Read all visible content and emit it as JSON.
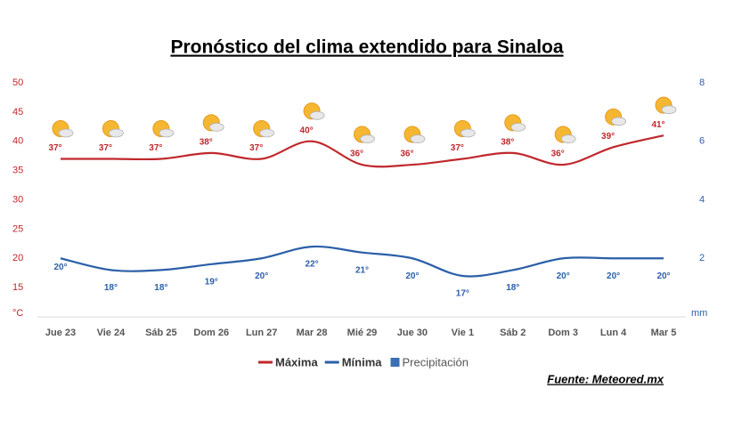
{
  "chart_data": {
    "type": "line",
    "title": "Pronóstico del clima extendido para Sinaloa",
    "source": "Fuente: Meteored.mx",
    "categories": [
      "Jue 23",
      "Vie 24",
      "Sáb 25",
      "Dom 26",
      "Lun 27",
      "Mar 28",
      "Mié 29",
      "Jue 30",
      "Vie 1",
      "Sáb 2",
      "Dom 3",
      "Lun 4",
      "Mar 5"
    ],
    "series": [
      {
        "name": "Máxima",
        "color": "#c0282d",
        "values": [
          37,
          37,
          37,
          38,
          37,
          40,
          36,
          36,
          37,
          38,
          36,
          39,
          41
        ],
        "value_labels": [
          "37°",
          "37°",
          "37°",
          "38°",
          "37°",
          "40°",
          "36°",
          "36°",
          "37°",
          "38°",
          "36°",
          "39°",
          "41°"
        ]
      },
      {
        "name": "Mínima",
        "color": "#2b5fa8",
        "values": [
          20,
          18,
          18,
          19,
          20,
          22,
          21,
          20,
          17,
          18,
          20,
          20,
          20
        ],
        "value_labels": [
          "20°",
          "18°",
          "18°",
          "19°",
          "20°",
          "22°",
          "21°",
          "20°",
          "17°",
          "18°",
          "20°",
          "20°",
          "20°"
        ]
      },
      {
        "name": "Precipitación",
        "color": "#3a6fb5",
        "axis": "y2",
        "values": [
          null,
          null,
          null,
          null,
          null,
          null,
          null,
          null,
          null,
          null,
          null,
          null,
          null
        ]
      }
    ],
    "ylim": [
      10,
      50
    ],
    "yticks": [
      {
        "value": 10,
        "label": "°C"
      },
      15,
      20,
      25,
      30,
      35,
      40,
      45,
      50
    ],
    "y2lim": [
      0,
      8
    ],
    "y2ticks": [
      {
        "value": 0,
        "label": "mm"
      },
      2,
      4,
      6,
      8
    ],
    "grid": false
  }
}
